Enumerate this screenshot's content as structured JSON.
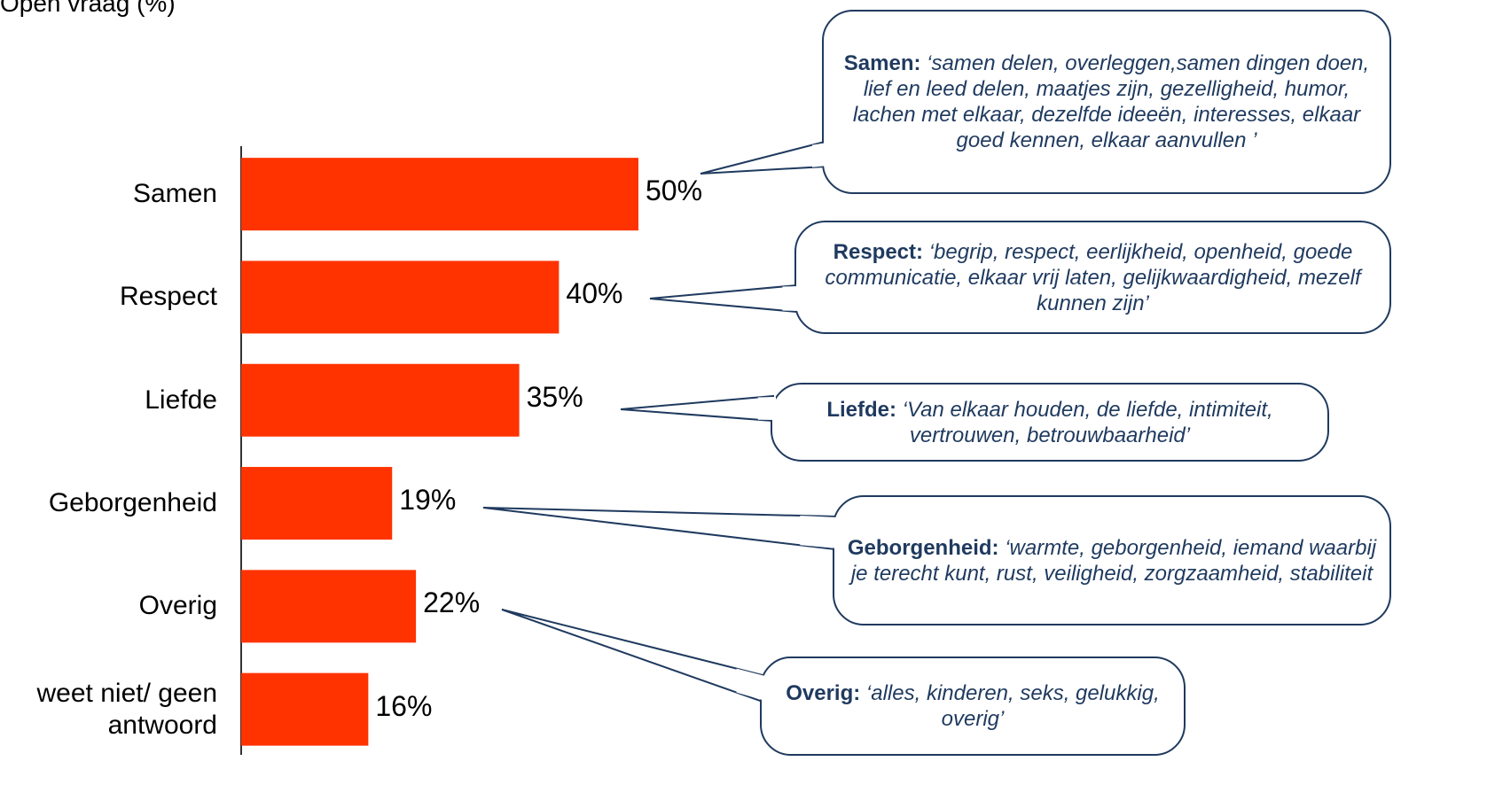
{
  "chart_data": {
    "type": "bar",
    "orientation": "horizontal",
    "title": "Open vraag (%)",
    "categories": [
      "Samen",
      "Respect",
      "Liefde",
      "Geborgenheid",
      "Overig",
      "weet niet/ geen antwoord"
    ],
    "values": [
      50,
      40,
      35,
      19,
      22,
      16
    ],
    "value_labels": [
      "50%",
      "40%",
      "35%",
      "19%",
      "22%",
      "16%"
    ],
    "color": "#ff3300",
    "xlim": [
      0,
      100
    ],
    "annotations": [
      {
        "label": "Samen:",
        "text": "‘samen delen, overleggen,samen dingen doen, lief en leed delen, maatjes zijn, gezelligheid, humor, lachen met elkaar, dezelfde ideeën, interesses, elkaar goed kennen, elkaar aanvullen ’"
      },
      {
        "label": "Respect:",
        "text": "‘begrip, respect, eerlijkheid, openheid, goede communicatie, elkaar vrij laten, gelijkwaardigheid, mezelf kunnen zijn’"
      },
      {
        "label": "Liefde:",
        "text": "‘Van elkaar houden, de liefde, intimiteit, vertrouwen, betrouwbaarheid’"
      },
      {
        "label": "Geborgenheid:",
        "text": "‘warmte, geborgenheid, iemand waarbij je terecht kunt, rust, veiligheid, zorgzaamheid, stabiliteit"
      },
      {
        "label": "Overig:",
        "text": "‘alles, kinderen, seks, gelukkig, overig’"
      }
    ]
  }
}
